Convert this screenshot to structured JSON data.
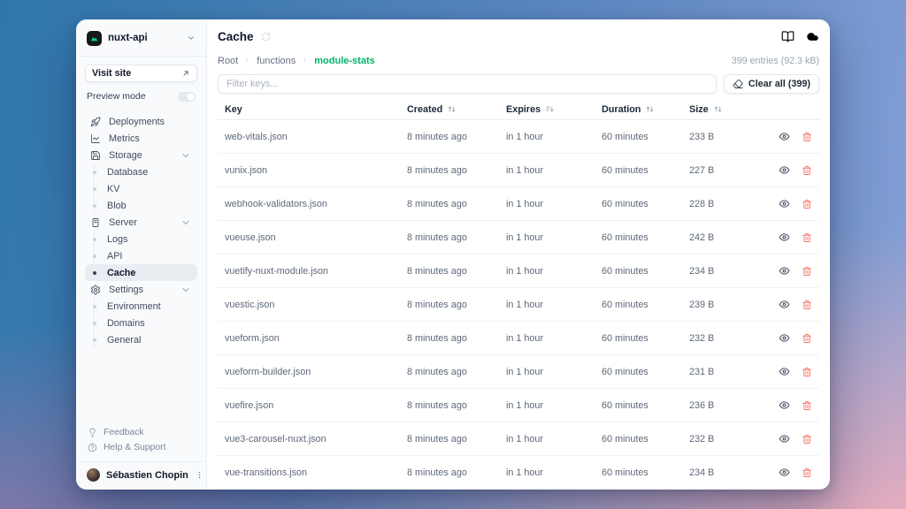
{
  "window": {
    "project_name": "nuxt-api",
    "visit_site_label": "Visit site",
    "preview_mode_label": "Preview mode"
  },
  "sidebar": {
    "items": [
      {
        "label": "Deployments",
        "icon": "rocket-icon",
        "type": "top"
      },
      {
        "label": "Metrics",
        "icon": "chart-icon",
        "type": "top"
      },
      {
        "label": "Storage",
        "icon": "storage-icon",
        "type": "top",
        "expandable": true
      },
      {
        "label": "Database",
        "type": "sub"
      },
      {
        "label": "KV",
        "type": "sub"
      },
      {
        "label": "Blob",
        "type": "sub"
      },
      {
        "label": "Server",
        "icon": "server-icon",
        "type": "top",
        "expandable": true
      },
      {
        "label": "Logs",
        "type": "sub"
      },
      {
        "label": "API",
        "type": "sub"
      },
      {
        "label": "Cache",
        "type": "sub",
        "active": true
      },
      {
        "label": "Settings",
        "icon": "gear-icon",
        "type": "top",
        "expandable": true
      },
      {
        "label": "Environment",
        "type": "sub"
      },
      {
        "label": "Domains",
        "type": "sub"
      },
      {
        "label": "General",
        "type": "sub"
      }
    ],
    "footer_items": [
      {
        "label": "Feedback",
        "icon": "lightbulb-icon"
      },
      {
        "label": "Help & Support",
        "icon": "help-circle-icon"
      }
    ],
    "user": {
      "name": "Sébastien Chopin"
    }
  },
  "main": {
    "title": "Cache",
    "breadcrumb": [
      {
        "label": "Root"
      },
      {
        "label": "functions"
      },
      {
        "label": "module-stats",
        "active": true
      }
    ],
    "entries_summary": "399 entries (92.3 kB)",
    "filter_placeholder": "Filter keys...",
    "clear_all_label": "Clear all (399)",
    "table": {
      "columns": [
        {
          "label": "Key"
        },
        {
          "label": "Created",
          "sort_icon": "sort-updown-icon"
        },
        {
          "label": "Expires",
          "sort_icon": "sort-bars-icon"
        },
        {
          "label": "Duration",
          "sort_icon": "sort-updown-icon"
        },
        {
          "label": "Size",
          "sort_icon": "sort-updown-icon"
        }
      ],
      "rows": [
        {
          "key": "web-vitals.json",
          "created": "8 minutes ago",
          "expires": "in 1 hour",
          "duration": "60 minutes",
          "size": "233 B"
        },
        {
          "key": "vunix.json",
          "created": "8 minutes ago",
          "expires": "in 1 hour",
          "duration": "60 minutes",
          "size": "227 B"
        },
        {
          "key": "webhook-validators.json",
          "created": "8 minutes ago",
          "expires": "in 1 hour",
          "duration": "60 minutes",
          "size": "228 B"
        },
        {
          "key": "vueuse.json",
          "created": "8 minutes ago",
          "expires": "in 1 hour",
          "duration": "60 minutes",
          "size": "242 B"
        },
        {
          "key": "vuetify-nuxt-module.json",
          "created": "8 minutes ago",
          "expires": "in 1 hour",
          "duration": "60 minutes",
          "size": "234 B"
        },
        {
          "key": "vuestic.json",
          "created": "8 minutes ago",
          "expires": "in 1 hour",
          "duration": "60 minutes",
          "size": "239 B"
        },
        {
          "key": "vueform.json",
          "created": "8 minutes ago",
          "expires": "in 1 hour",
          "duration": "60 minutes",
          "size": "232 B"
        },
        {
          "key": "vueform-builder.json",
          "created": "8 minutes ago",
          "expires": "in 1 hour",
          "duration": "60 minutes",
          "size": "231 B"
        },
        {
          "key": "vuefire.json",
          "created": "8 minutes ago",
          "expires": "in 1 hour",
          "duration": "60 minutes",
          "size": "236 B"
        },
        {
          "key": "vue3-carousel-nuxt.json",
          "created": "8 minutes ago",
          "expires": "in 1 hour",
          "duration": "60 minutes",
          "size": "232 B"
        },
        {
          "key": "vue-transitions.json",
          "created": "8 minutes ago",
          "expires": "in 1 hour",
          "duration": "60 minutes",
          "size": "234 B"
        }
      ]
    }
  },
  "colors": {
    "accent_green": "#00b368",
    "danger_red": "#f97066",
    "logo_green": "#00dc82"
  }
}
